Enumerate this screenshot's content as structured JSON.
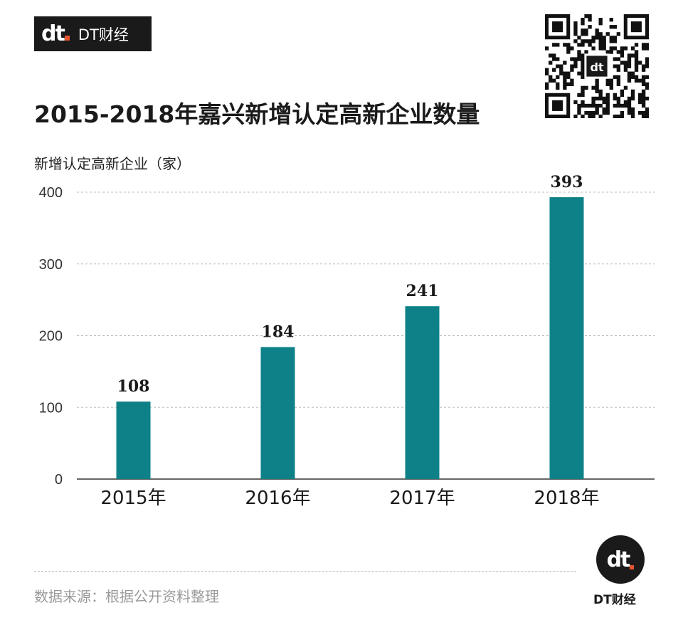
{
  "brand": {
    "logo_text": "dt",
    "name": "DT财经"
  },
  "title": "2015-2018年嘉兴新增认定高新企业数量",
  "footer": {
    "source": "数据来源：根据公开资料整理",
    "brand_name": "DT财经"
  },
  "colors": {
    "bar": "#0e8188",
    "grid": "#bdbdbd",
    "text": "#1a1a1a",
    "accent": "#e8542f"
  },
  "chart_data": {
    "type": "bar",
    "title": "2015-2018年嘉兴新增认定高新企业数量",
    "ylabel": "新增认定高新企业（家）",
    "xlabel": "",
    "categories": [
      "2015年",
      "2016年",
      "2017年",
      "2018年"
    ],
    "values": [
      108,
      184,
      241,
      393
    ],
    "ylim": [
      0,
      400
    ],
    "yticks": [
      0,
      100,
      200,
      300,
      400
    ],
    "grid": true,
    "data_labels": true
  }
}
